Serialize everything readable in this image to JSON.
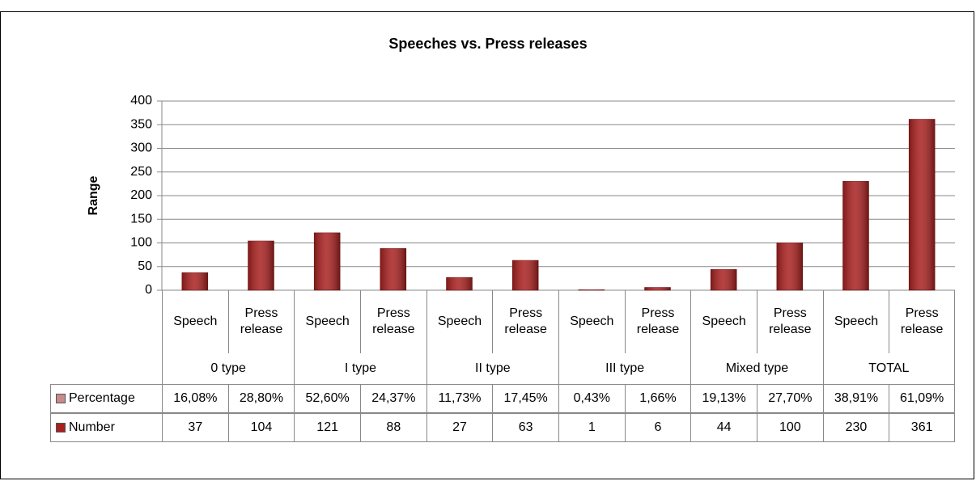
{
  "chart_data": {
    "type": "bar",
    "stacked": true,
    "title": "Speeches vs. Press releases",
    "y_label": "Range",
    "categories": [
      "Speech",
      "Press release",
      "Speech",
      "Press release",
      "Speech",
      "Press release",
      "Speech",
      "Press release",
      "Speech",
      "Press release",
      "Speech",
      "Press release"
    ],
    "category_groups": [
      "0 type",
      "I type",
      "II type",
      "III type",
      "Mixed type",
      "TOTAL"
    ],
    "series": [
      {
        "name": "Percentage",
        "color": "#c98a8a",
        "values": [
          0.1608,
          0.288,
          0.526,
          0.2437,
          0.1173,
          0.1745,
          0.0043,
          0.0166,
          0.1913,
          0.277,
          0.3891,
          0.6109
        ],
        "value_labels": [
          "16,08%",
          "28,80%",
          "52,60%",
          "24,37%",
          "11,73%",
          "17,45%",
          "0,43%",
          "1,66%",
          "19,13%",
          "27,70%",
          "38,91%",
          "61,09%"
        ]
      },
      {
        "name": "Number",
        "color": "#a8201f",
        "values": [
          37,
          104,
          121,
          88,
          27,
          63,
          1,
          6,
          44,
          100,
          230,
          361
        ]
      }
    ],
    "ylim": [
      0,
      400
    ],
    "yticks": [
      0,
      50,
      100,
      150,
      200,
      250,
      300,
      350,
      400
    ],
    "grid": true
  }
}
